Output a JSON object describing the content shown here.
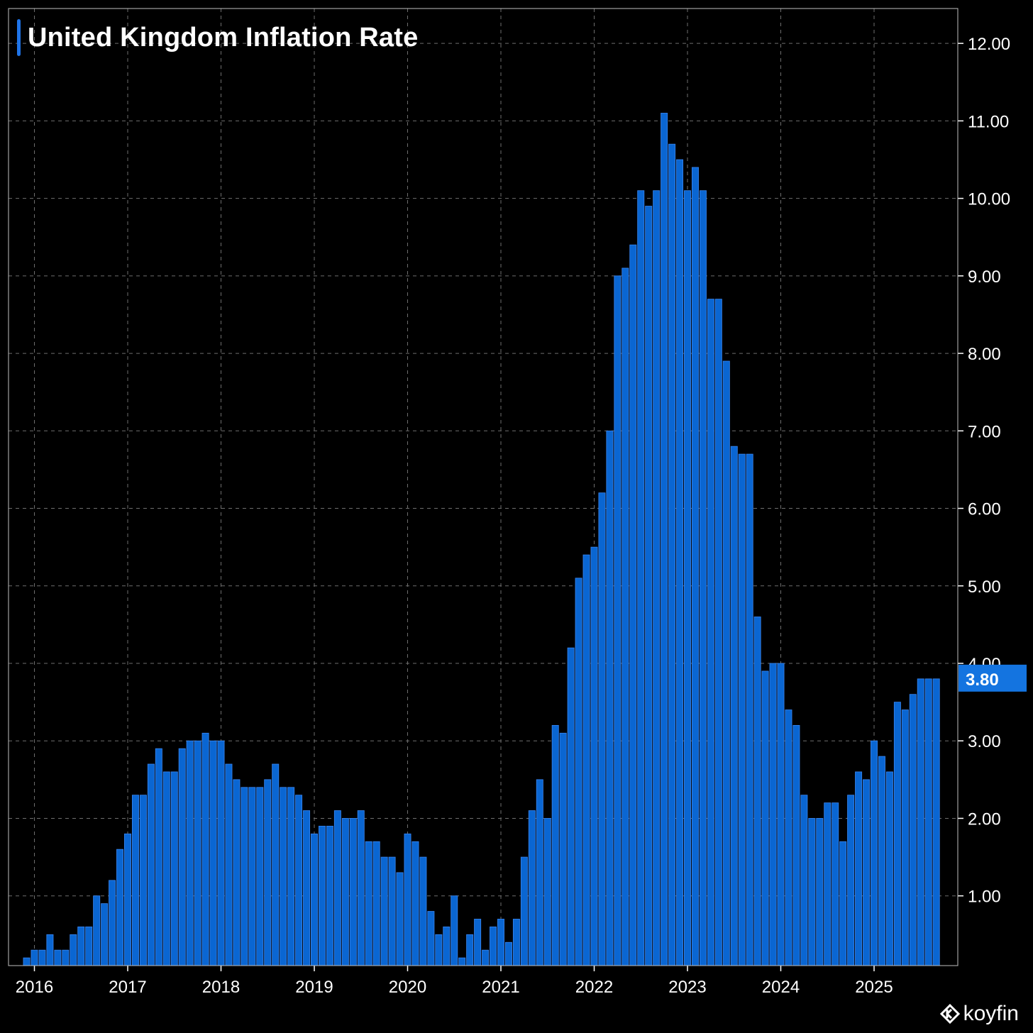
{
  "title": "United Kingdom Inflation Rate",
  "brand": {
    "name": "koyfin",
    "icon": "koyfin-logo-icon"
  },
  "colors": {
    "bar": "#0a66d2",
    "bar_edge": "#3a86f0",
    "grid": "#6e6e6e",
    "text": "#ffffff",
    "background": "#000000",
    "badge": "#1474e0"
  },
  "chart_data": {
    "type": "bar",
    "title": "United Kingdom Inflation Rate",
    "xlabel": "",
    "ylabel": "",
    "ylim": [
      0.1,
      12.45
    ],
    "y_axis_side": "right",
    "grid": true,
    "yticks": [
      "1.00",
      "2.00",
      "3.00",
      "4.00",
      "5.00",
      "6.00",
      "7.00",
      "8.00",
      "9.00",
      "10.00",
      "11.00",
      "12.00"
    ],
    "xticks": [
      "2016",
      "2017",
      "2018",
      "2019",
      "2020",
      "2021",
      "2022",
      "2023",
      "2024",
      "2025"
    ],
    "start": "2015-12",
    "frequency": "monthly",
    "values": [
      0.2,
      0.3,
      0.3,
      0.5,
      0.3,
      0.3,
      0.5,
      0.6,
      0.6,
      1.0,
      0.9,
      1.2,
      1.6,
      1.8,
      2.3,
      2.3,
      2.7,
      2.9,
      2.6,
      2.6,
      2.9,
      3.0,
      3.0,
      3.1,
      3.0,
      3.0,
      2.7,
      2.5,
      2.4,
      2.4,
      2.4,
      2.5,
      2.7,
      2.4,
      2.4,
      2.3,
      2.1,
      1.8,
      1.9,
      1.9,
      2.1,
      2.0,
      2.0,
      2.1,
      1.7,
      1.7,
      1.5,
      1.5,
      1.3,
      1.8,
      1.7,
      1.5,
      0.8,
      0.5,
      0.6,
      1.0,
      0.2,
      0.5,
      0.7,
      0.3,
      0.6,
      0.7,
      0.4,
      0.7,
      1.5,
      2.1,
      2.5,
      2.0,
      3.2,
      3.1,
      4.2,
      5.1,
      5.4,
      5.5,
      6.2,
      7.0,
      9.0,
      9.1,
      9.4,
      10.1,
      9.9,
      10.1,
      11.1,
      10.7,
      10.5,
      10.1,
      10.4,
      10.1,
      8.7,
      8.7,
      7.9,
      6.8,
      6.7,
      6.7,
      4.6,
      3.9,
      4.0,
      4.0,
      3.4,
      3.2,
      2.3,
      2.0,
      2.0,
      2.2,
      2.2,
      1.7,
      2.3,
      2.6,
      2.5,
      3.0,
      2.8,
      2.6,
      3.5,
      3.4,
      3.6,
      3.8,
      3.8,
      3.8
    ],
    "last_value_label": "3.80"
  }
}
